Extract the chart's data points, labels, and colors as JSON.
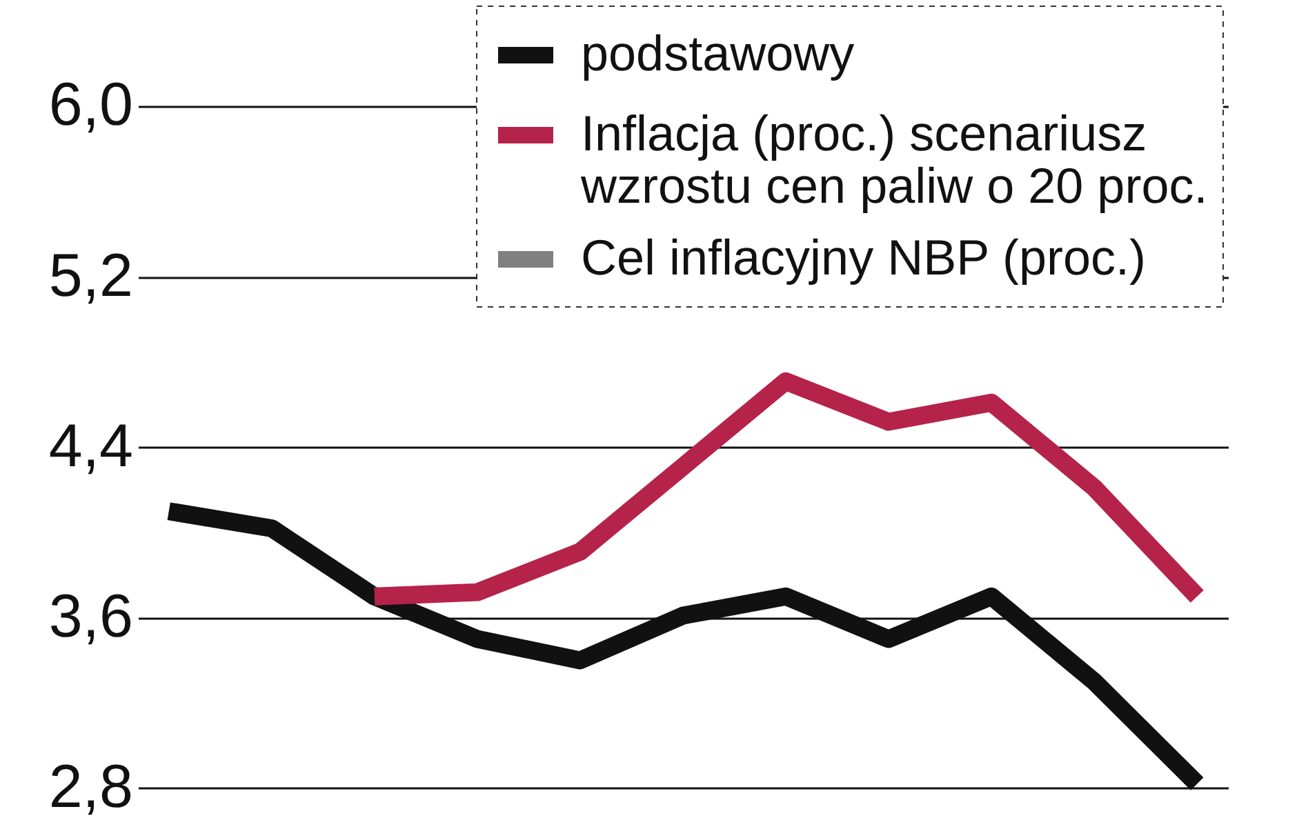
{
  "chart_data": {
    "type": "line",
    "categories": [
      null,
      null,
      null,
      null,
      null,
      null,
      null,
      null,
      null,
      null,
      null
    ],
    "series": [
      {
        "name": "podstawowy",
        "color": "#111111",
        "values": [
          4.1,
          4.02,
          3.7,
          3.5,
          3.4,
          3.61,
          3.7,
          3.5,
          3.7,
          3.3,
          2.82
        ]
      },
      {
        "name": "Inflacja (proc.) scenariusz\nwzrostu cen paliw o 20 proc.",
        "color": "#b5234a",
        "values": [
          null,
          null,
          3.7,
          3.72,
          3.91,
          4.31,
          4.71,
          4.52,
          4.61,
          4.21,
          3.7
        ]
      },
      {
        "name": "Cel inflacyjny NBP (proc.)",
        "color": "#808080",
        "values": [
          null,
          null,
          null,
          null,
          null,
          null,
          null,
          null,
          null,
          null,
          null
        ]
      }
    ],
    "ylim": [
      2.66,
      6.5
    ],
    "yticks": [
      {
        "value": 2.8,
        "label": "2,8"
      },
      {
        "value": 3.6,
        "label": "3,6"
      },
      {
        "value": 4.4,
        "label": "4,4"
      },
      {
        "value": 5.2,
        "label": "5,2"
      },
      {
        "value": 6.0,
        "label": "6,0"
      }
    ],
    "grid": "y",
    "legend": "top right",
    "tick_labels": "y",
    "line_style": "solid",
    "marker": "none"
  }
}
